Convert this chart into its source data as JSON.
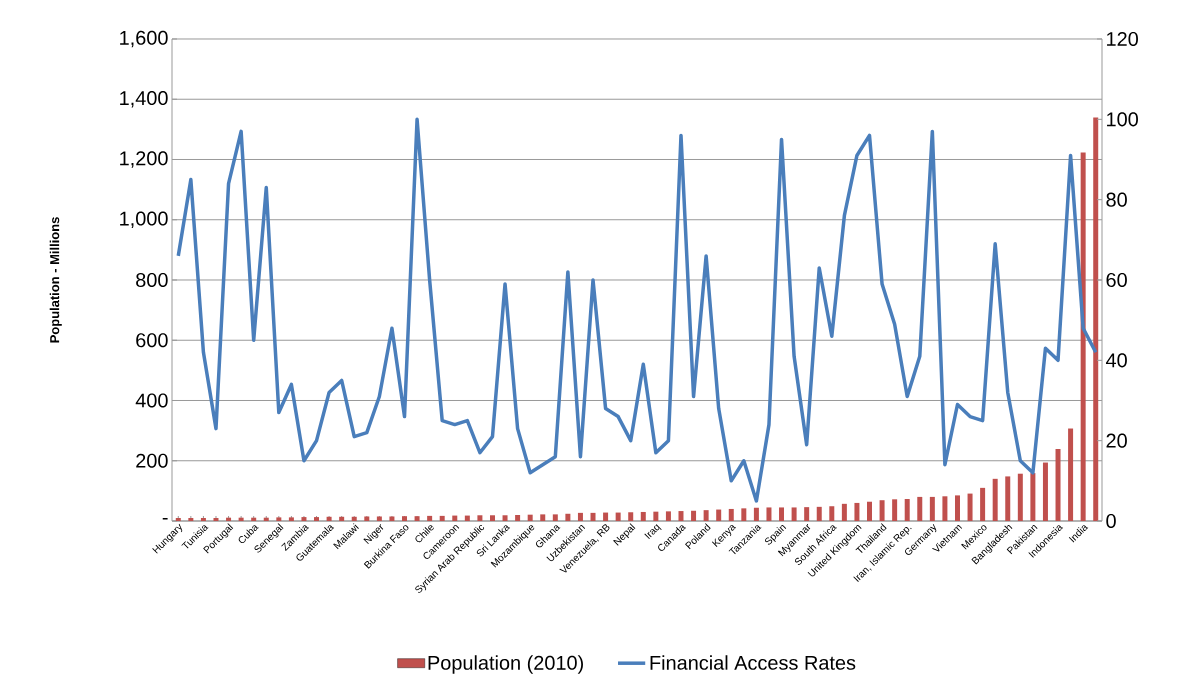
{
  "chart_data": {
    "type": "bar",
    "ylabel": "Population - Millions",
    "categories": [
      "Hungary",
      null,
      "Tunisia",
      null,
      "Portugal",
      null,
      "Cuba",
      null,
      "Senegal",
      null,
      "Zambia",
      null,
      "Guatemala",
      null,
      "Malawi",
      null,
      "Niger",
      null,
      "Burkina Faso",
      null,
      "Chile",
      null,
      "Cameroon",
      null,
      "Syrian Arab Republic",
      null,
      "Sri Lanka",
      null,
      "Mozambique",
      null,
      "Ghana",
      null,
      "Uzbekistan",
      null,
      "Venezuela, RB",
      null,
      "Nepal",
      null,
      "Iraq",
      null,
      "Canada",
      null,
      "Poland",
      null,
      "Kenya",
      null,
      "Tanzania",
      null,
      "Spain",
      null,
      "Myanmar",
      null,
      "South Africa",
      null,
      "United Kingdom",
      null,
      "Thailand",
      null,
      "Iran, Islamic Rep.",
      null,
      "Germany",
      null,
      "Vietnam",
      null,
      "Mexico",
      null,
      "Bangladesh",
      null,
      "Pakistan",
      null,
      "Indonesia",
      null,
      "India",
      null
    ],
    "series": [
      {
        "name": "Population (2010)",
        "color": "#c0504d",
        "values": [
          10,
          10,
          10,
          10,
          11,
          11,
          11,
          11,
          12,
          12,
          13,
          13,
          14,
          14,
          14,
          15,
          15,
          15,
          16,
          16,
          17,
          17,
          18,
          18,
          19,
          19,
          19,
          20,
          21,
          22,
          22,
          24,
          27,
          27,
          28,
          28,
          29,
          30,
          31,
          32,
          33,
          34,
          36,
          38,
          40,
          42,
          44,
          45,
          45,
          45,
          46,
          47,
          49,
          57,
          60,
          64,
          69,
          72,
          73,
          80,
          80,
          82,
          85,
          91,
          110,
          140,
          148,
          157,
          159,
          194,
          239,
          307,
          1223,
          1339
        ]
      },
      {
        "name": "Financial Access Rates",
        "type": "line",
        "axis": "y2",
        "color": "#4a7ebb",
        "values": [
          66,
          85,
          42,
          23,
          84,
          97,
          45,
          83,
          27,
          34,
          15,
          20,
          32,
          35,
          21,
          22,
          31,
          48,
          26,
          100,
          60,
          25,
          24,
          25,
          17,
          21,
          59,
          23,
          12,
          14,
          16,
          62,
          16,
          60,
          28,
          26,
          20,
          39,
          17,
          20,
          96,
          31,
          66,
          28,
          10,
          15,
          5,
          24,
          95,
          41,
          19,
          63,
          46,
          76,
          91,
          96,
          59,
          49,
          31,
          41,
          97,
          14,
          29,
          26,
          25,
          69,
          32,
          15,
          12,
          43,
          40,
          91,
          48,
          42
        ]
      }
    ],
    "ylim": [
      0,
      1600
    ],
    "yticks": [
      {
        "value": 0,
        "label": "-"
      },
      {
        "value": 200,
        "label": "200"
      },
      {
        "value": 400,
        "label": "400"
      },
      {
        "value": 600,
        "label": "600"
      },
      {
        "value": 800,
        "label": "800"
      },
      {
        "value": 1000,
        "label": "1,000"
      },
      {
        "value": 1200,
        "label": "1,200"
      },
      {
        "value": 1400,
        "label": "1,400"
      },
      {
        "value": 1600,
        "label": "1,600"
      }
    ],
    "y2lim": [
      0,
      120
    ],
    "y2ticks": [
      0,
      20,
      40,
      60,
      80,
      100,
      120
    ],
    "grid": "y",
    "legend": "bottom",
    "marker": "none",
    "line_style": "solid"
  }
}
